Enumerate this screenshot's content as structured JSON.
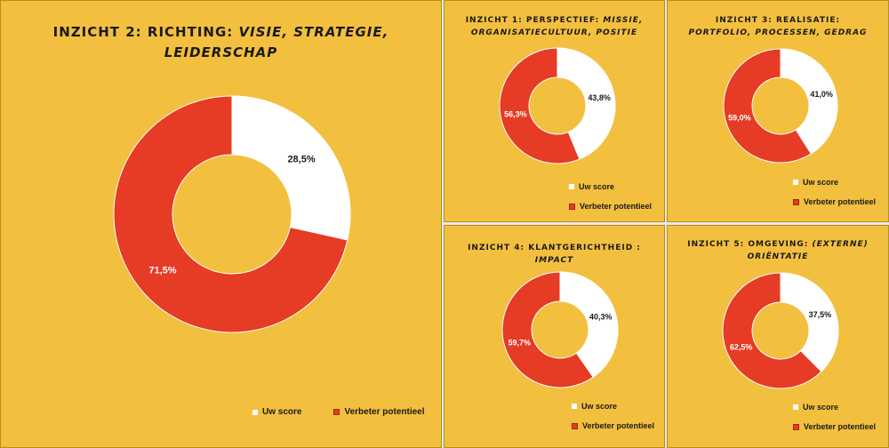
{
  "colors": {
    "background": "#f3bf3e",
    "score": "#ffffff",
    "potential": "#e63b25",
    "score_label": "#1a1a1a",
    "potential_label": "#ffffff"
  },
  "legend": {
    "score": "Uw score",
    "potential": "Verbeter potentieel"
  },
  "chart_data": [
    {
      "type": "pie",
      "title_plain": "INZICHT 2: RICHTING:",
      "title_italic": "VISIE, STRATEGIE, LEIDERSCHAP",
      "categories": [
        "Uw score",
        "Verbeter potentieel"
      ],
      "values": [
        28.5,
        71.5
      ],
      "value_labels": [
        "28,5%",
        "71,5%"
      ]
    },
    {
      "type": "pie",
      "title_plain": "INZICHT 1: PERSPECTIEF:",
      "title_italic": "MISSIE, ORGANISATIECULTUUR, POSITIE",
      "categories": [
        "Uw score",
        "Verbeter potentieel"
      ],
      "values": [
        43.8,
        56.3
      ],
      "value_labels": [
        "43,8%",
        "56,3%"
      ]
    },
    {
      "type": "pie",
      "title_plain": "INZICHT 3: REALISATIE:",
      "title_italic": "PORTFOLIO, PROCESSEN, GEDRAG",
      "categories": [
        "Uw score",
        "Verbeter potentieel"
      ],
      "values": [
        41.0,
        59.0
      ],
      "value_labels": [
        "41,0%",
        "59,0%"
      ]
    },
    {
      "type": "pie",
      "title_plain": "INZICHT 4: KLANTGERICHTHEID :",
      "title_italic": "IMPACT",
      "categories": [
        "Uw score",
        "Verbeter potentieel"
      ],
      "values": [
        40.3,
        59.7
      ],
      "value_labels": [
        "40,3%",
        "59,7%"
      ]
    },
    {
      "type": "pie",
      "title_plain": "INZICHT 5: OMGEVING:",
      "title_italic": "(EXTERNE) ORIËNTATIE",
      "categories": [
        "Uw score",
        "Verbeter potentieel"
      ],
      "values": [
        37.5,
        62.5
      ],
      "value_labels": [
        "37,5%",
        "62,5%"
      ]
    }
  ]
}
